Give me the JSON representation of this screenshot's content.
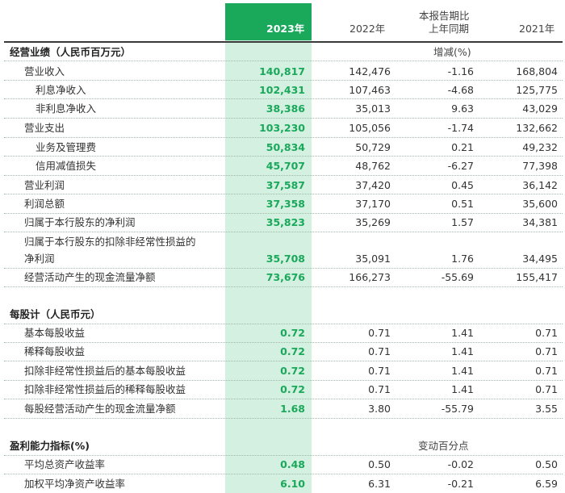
{
  "header": {
    "col_2023": "2023年",
    "col_2022": "2022年",
    "col_change_line1": "本报告期比",
    "col_change_line2": "上年同期",
    "col_2021": "2021年"
  },
  "sections": [
    {
      "title": "经营业绩（人民币百万元）",
      "change_unit": "增减(%)",
      "rows": [
        {
          "label": "营业收入",
          "v2023": "140,817",
          "v2022": "142,476",
          "change": "-1.16",
          "v2021": "168,804"
        },
        {
          "label": "利息净收入",
          "v2023": "102,431",
          "v2022": "107,463",
          "change": "-4.68",
          "v2021": "125,775"
        },
        {
          "label": "非利息净收入",
          "v2023": "38,386",
          "v2022": "35,013",
          "change": "9.63",
          "v2021": "43,029"
        },
        {
          "label": "营业支出",
          "v2023": "103,230",
          "v2022": "105,056",
          "change": "-1.74",
          "v2021": "132,662"
        },
        {
          "label": "业务及管理费",
          "v2023": "50,834",
          "v2022": "50,729",
          "change": "0.21",
          "v2021": "49,232"
        },
        {
          "label": "信用减值损失",
          "v2023": "45,707",
          "v2022": "48,762",
          "change": "-6.27",
          "v2021": "77,398"
        },
        {
          "label": "营业利润",
          "v2023": "37,587",
          "v2022": "37,420",
          "change": "0.45",
          "v2021": "36,142"
        },
        {
          "label": "利润总额",
          "v2023": "37,358",
          "v2022": "37,170",
          "change": "0.51",
          "v2021": "35,600"
        },
        {
          "label": "归属于本行股东的净利润",
          "v2023": "35,823",
          "v2022": "35,269",
          "change": "1.57",
          "v2021": "34,381"
        },
        {
          "label_line1": "归属于本行股东的扣除非经常性损益的",
          "label": "净利润",
          "v2023": "35,708",
          "v2022": "35,091",
          "change": "1.76",
          "v2021": "34,495"
        },
        {
          "label": "经营活动产生的现金流量净额",
          "v2023": "73,676",
          "v2022": "166,273",
          "change": "-55.69",
          "v2021": "155,417"
        }
      ]
    },
    {
      "title": "每股计（人民币元）",
      "rows": [
        {
          "label": "基本每股收益",
          "v2023": "0.72",
          "v2022": "0.71",
          "change": "1.41",
          "v2021": "0.71"
        },
        {
          "label": "稀释每股收益",
          "v2023": "0.72",
          "v2022": "0.71",
          "change": "1.41",
          "v2021": "0.71"
        },
        {
          "label": "扣除非经常性损益后的基本每股收益",
          "v2023": "0.72",
          "v2022": "0.71",
          "change": "1.41",
          "v2021": "0.71"
        },
        {
          "label": "扣除非经常性损益后的稀释每股收益",
          "v2023": "0.72",
          "v2022": "0.71",
          "change": "1.41",
          "v2021": "0.71"
        },
        {
          "label": "每股经营活动产生的现金流量净额",
          "v2023": "1.68",
          "v2022": "3.80",
          "change": "-55.79",
          "v2021": "3.55"
        }
      ]
    },
    {
      "title": "盈利能力指标(%)",
      "change_unit": "变动百分点",
      "rows": [
        {
          "label": "平均总资产收益率",
          "v2023": "0.48",
          "v2022": "0.50",
          "change": "-0.02",
          "v2021": "0.50"
        },
        {
          "label": "加权平均净资产收益率",
          "v2023": "6.10",
          "v2022": "6.31",
          "change": "-0.21",
          "v2021": "6.59"
        }
      ]
    }
  ]
}
